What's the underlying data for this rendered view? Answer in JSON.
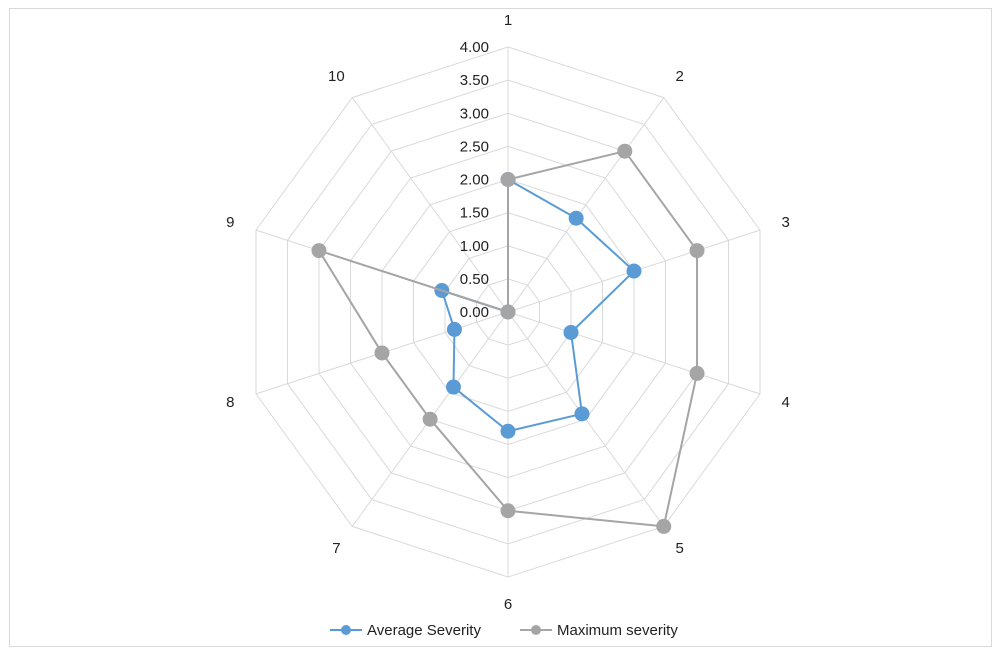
{
  "chart_data": {
    "type": "radar",
    "categories": [
      "1",
      "2",
      "3",
      "4",
      "5",
      "6",
      "7",
      "8",
      "9",
      "10"
    ],
    "rlim": [
      0,
      4
    ],
    "ticks": [
      "0.00",
      "0.50",
      "1.00",
      "1.50",
      "2.00",
      "2.50",
      "3.00",
      "3.50",
      "4.00"
    ],
    "grid": true,
    "legend_position": "bottom",
    "series": [
      {
        "name": "Average Severity",
        "color": "#5b9bd5",
        "values": [
          2.0,
          1.75,
          2.0,
          1.0,
          1.9,
          1.8,
          1.4,
          0.85,
          1.05,
          0.0
        ]
      },
      {
        "name": "Maximum severity",
        "color": "#a5a5a5",
        "values": [
          2.0,
          3.0,
          3.0,
          3.0,
          4.0,
          3.0,
          2.0,
          2.0,
          3.0,
          0.0
        ]
      }
    ]
  }
}
